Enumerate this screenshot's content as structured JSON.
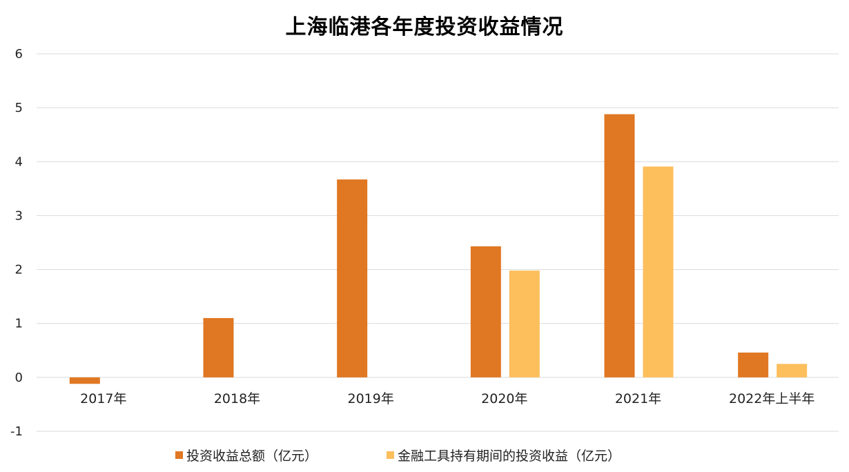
{
  "chart_data": {
    "type": "bar",
    "title": "上海临港各年度投资收益情况",
    "categories": [
      "2017年",
      "2018年",
      "2019年",
      "2020年",
      "2021年",
      "2022年上半年"
    ],
    "series": [
      {
        "name": "投资收益总额（亿元）",
        "color": "#E07722",
        "values": [
          -0.12,
          1.1,
          3.67,
          2.43,
          4.88,
          0.46
        ]
      },
      {
        "name": "金融工具持有期间的投资收益（亿元）",
        "color": "#FDBE5C",
        "values": [
          null,
          null,
          null,
          1.98,
          3.91,
          0.25
        ]
      }
    ],
    "ylim": [
      -1,
      6
    ],
    "yticks": [
      "-1",
      "0",
      "1",
      "2",
      "3",
      "4",
      "5",
      "6"
    ],
    "xlabel": "",
    "ylabel": "",
    "grid": true,
    "legend": "bottom-center"
  }
}
